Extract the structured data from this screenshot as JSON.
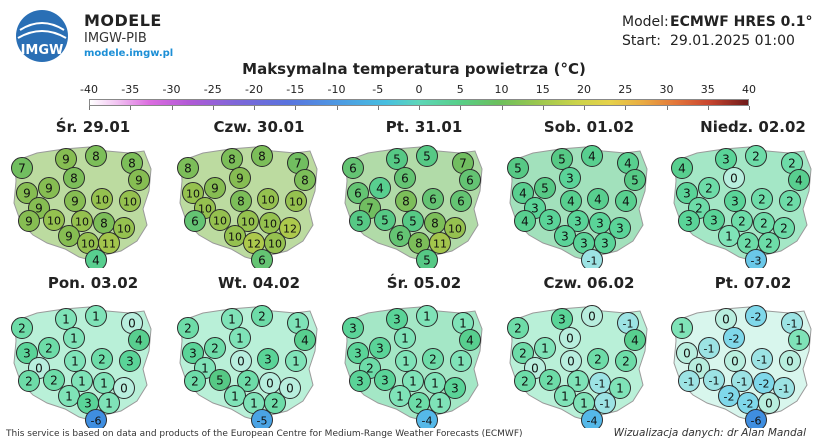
{
  "header": {
    "logo_text": "IMGW",
    "brand_title": "MODELE",
    "brand_subtitle": "IMGW-PIB",
    "brand_link": "modele.imgw.pl",
    "model_label": "Model:",
    "model_value": "ECMWF HRES 0.1°",
    "start_label": "Start:",
    "start_value": "29.01.2025 01:00"
  },
  "title": "Maksymalna temperatura powietrza (°C)",
  "scale": {
    "min": -40,
    "max": 40,
    "ticks": [
      "-40",
      "-35",
      "-30",
      "-25",
      "-20",
      "-15",
      "-10",
      "-5",
      "0",
      "5",
      "10",
      "15",
      "20",
      "25",
      "30",
      "35",
      "40"
    ]
  },
  "days": [
    {
      "label": "Śr. 29.01",
      "values": [
        7,
        9,
        8,
        8,
        9,
        9,
        9,
        8,
        9,
        10,
        10,
        9,
        10,
        10,
        8,
        10,
        9,
        9,
        10,
        11,
        4
      ]
    },
    {
      "label": "Czw. 30.01",
      "values": [
        8,
        8,
        8,
        7,
        8,
        10,
        9,
        9,
        8,
        10,
        10,
        10,
        10,
        10,
        10,
        12,
        6,
        10,
        12,
        10,
        6
      ]
    },
    {
      "label": "Pt. 31.01",
      "values": [
        6,
        5,
        5,
        7,
        6,
        6,
        4,
        6,
        8,
        6,
        6,
        7,
        5,
        5,
        8,
        10,
        5,
        6,
        8,
        11,
        5
      ]
    },
    {
      "label": "Sob. 01.02",
      "values": [
        5,
        5,
        4,
        4,
        5,
        4,
        5,
        3,
        4,
        4,
        4,
        3,
        3,
        3,
        3,
        3,
        4,
        3,
        3,
        3,
        -1
      ]
    },
    {
      "label": "Niedz. 02.02",
      "values": [
        4,
        3,
        2,
        2,
        4,
        3,
        2,
        0,
        3,
        2,
        2,
        2,
        3,
        2,
        2,
        2,
        3,
        1,
        2,
        2,
        -3
      ]
    },
    {
      "label": "Pon. 03.02",
      "values": [
        2,
        1,
        1,
        0,
        4,
        3,
        2,
        1,
        1,
        2,
        3,
        0,
        2,
        1,
        1,
        0,
        2,
        1,
        3,
        1,
        -6
      ]
    },
    {
      "label": "Wt. 04.02",
      "values": [
        2,
        1,
        2,
        1,
        4,
        3,
        2,
        1,
        0,
        3,
        1,
        1,
        5,
        2,
        0,
        0,
        2,
        1,
        1,
        2,
        -5
      ]
    },
    {
      "label": "Śr. 05.02",
      "values": [
        3,
        3,
        1,
        1,
        4,
        3,
        3,
        1,
        1,
        2,
        1,
        2,
        3,
        1,
        1,
        3,
        3,
        1,
        2,
        1,
        -4
      ]
    },
    {
      "label": "Czw. 06.02",
      "values": [
        2,
        3,
        0,
        -1,
        4,
        2,
        1,
        0,
        0,
        2,
        2,
        0,
        2,
        1,
        -1,
        1,
        2,
        1,
        1,
        -1,
        -4
      ]
    },
    {
      "label": "Pt. 07.02",
      "values": [
        1,
        0,
        -2,
        -1,
        1,
        0,
        -1,
        -2,
        0,
        -1,
        0,
        0,
        -1,
        -1,
        -2,
        -1,
        -1,
        -2,
        -2,
        0,
        -6
      ]
    }
  ],
  "footer": {
    "left": "This service is based on data and products of the European Centre for Medium-Range Weather Forecasts (ECMWF)",
    "right": "Wizualizacja danych: dr Alan Mandal"
  }
}
